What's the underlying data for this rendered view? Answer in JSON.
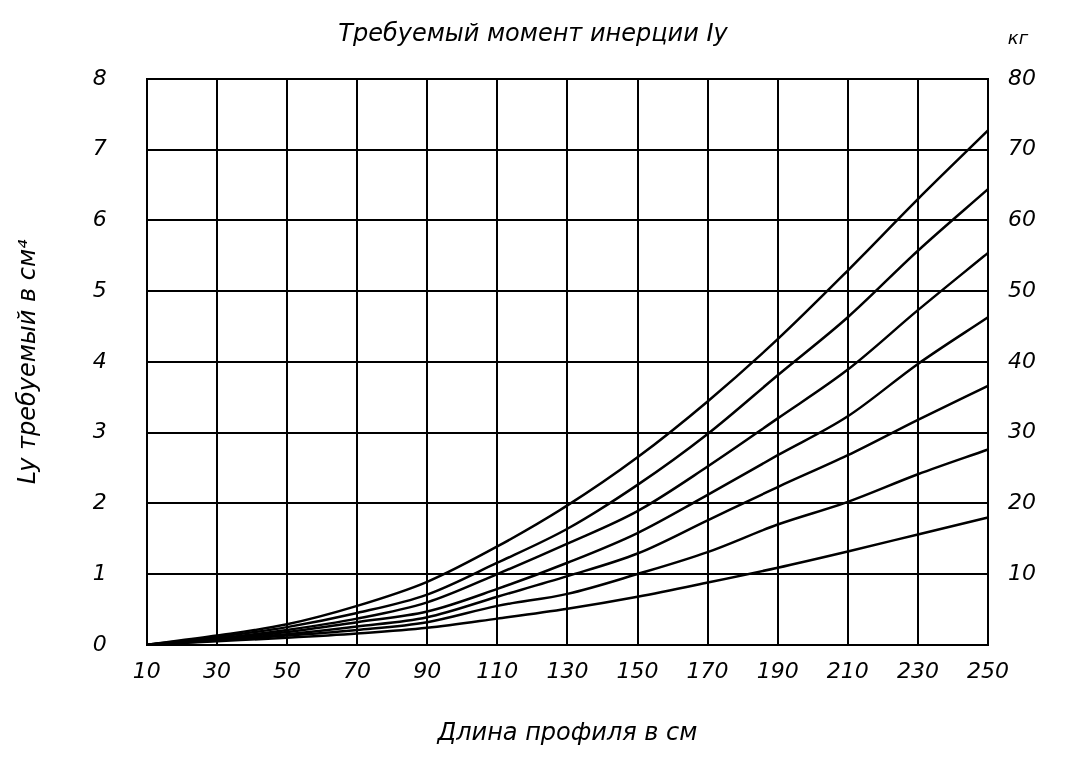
{
  "chart_data": {
    "type": "line",
    "title": "Требуемый момент инерции Iy",
    "xlabel": "Длина профиля в см",
    "ylabel": "Ly требуемый в см⁴",
    "y2label": "кг",
    "x": [
      10,
      30,
      50,
      70,
      90,
      110,
      130,
      150,
      170,
      190,
      210,
      230,
      250
    ],
    "series": [
      {
        "color": "#000000",
        "values": [
          0,
          0.13,
          0.29,
          0.55,
          0.89,
          1.39,
          1.97,
          2.65,
          3.44,
          4.32,
          5.29,
          6.3,
          7.27
        ]
      },
      {
        "color": "#000000",
        "values": [
          0,
          0.11,
          0.25,
          0.45,
          0.71,
          1.16,
          1.64,
          2.26,
          2.98,
          3.81,
          4.63,
          5.57,
          6.44
        ]
      },
      {
        "color": "#000000",
        "values": [
          0,
          0.09,
          0.21,
          0.37,
          0.6,
          1.0,
          1.43,
          1.89,
          2.52,
          3.2,
          3.89,
          4.73,
          5.54
        ]
      },
      {
        "color": "#000000",
        "values": [
          0,
          0.08,
          0.18,
          0.32,
          0.47,
          0.79,
          1.16,
          1.58,
          2.12,
          2.68,
          3.23,
          3.97,
          4.63
        ]
      },
      {
        "color": "#000000",
        "values": [
          0,
          0.07,
          0.15,
          0.26,
          0.39,
          0.68,
          0.97,
          1.29,
          1.76,
          2.23,
          2.68,
          3.18,
          3.66
        ]
      },
      {
        "color": "#000000",
        "values": [
          0,
          0.06,
          0.13,
          0.21,
          0.32,
          0.55,
          0.72,
          1.0,
          1.31,
          1.7,
          2.02,
          2.41,
          2.76
        ]
      },
      {
        "color": "#000000",
        "values": [
          0,
          0.05,
          0.1,
          0.16,
          0.24,
          0.37,
          0.51,
          0.68,
          0.88,
          1.09,
          1.32,
          1.56,
          1.8
        ]
      }
    ],
    "xlim": [
      10,
      250
    ],
    "xticks": [
      10,
      30,
      50,
      70,
      90,
      110,
      130,
      150,
      170,
      190,
      210,
      230,
      250
    ],
    "ylim": [
      0,
      8
    ],
    "yticks": [
      0,
      1,
      2,
      3,
      4,
      5,
      6,
      7,
      8
    ],
    "y2lim": [
      0,
      80
    ],
    "y2ticks": [
      10,
      20,
      30,
      40,
      50,
      60,
      70,
      80
    ],
    "grid": true,
    "legend": false,
    "marker": "none",
    "line_style": "solid"
  }
}
